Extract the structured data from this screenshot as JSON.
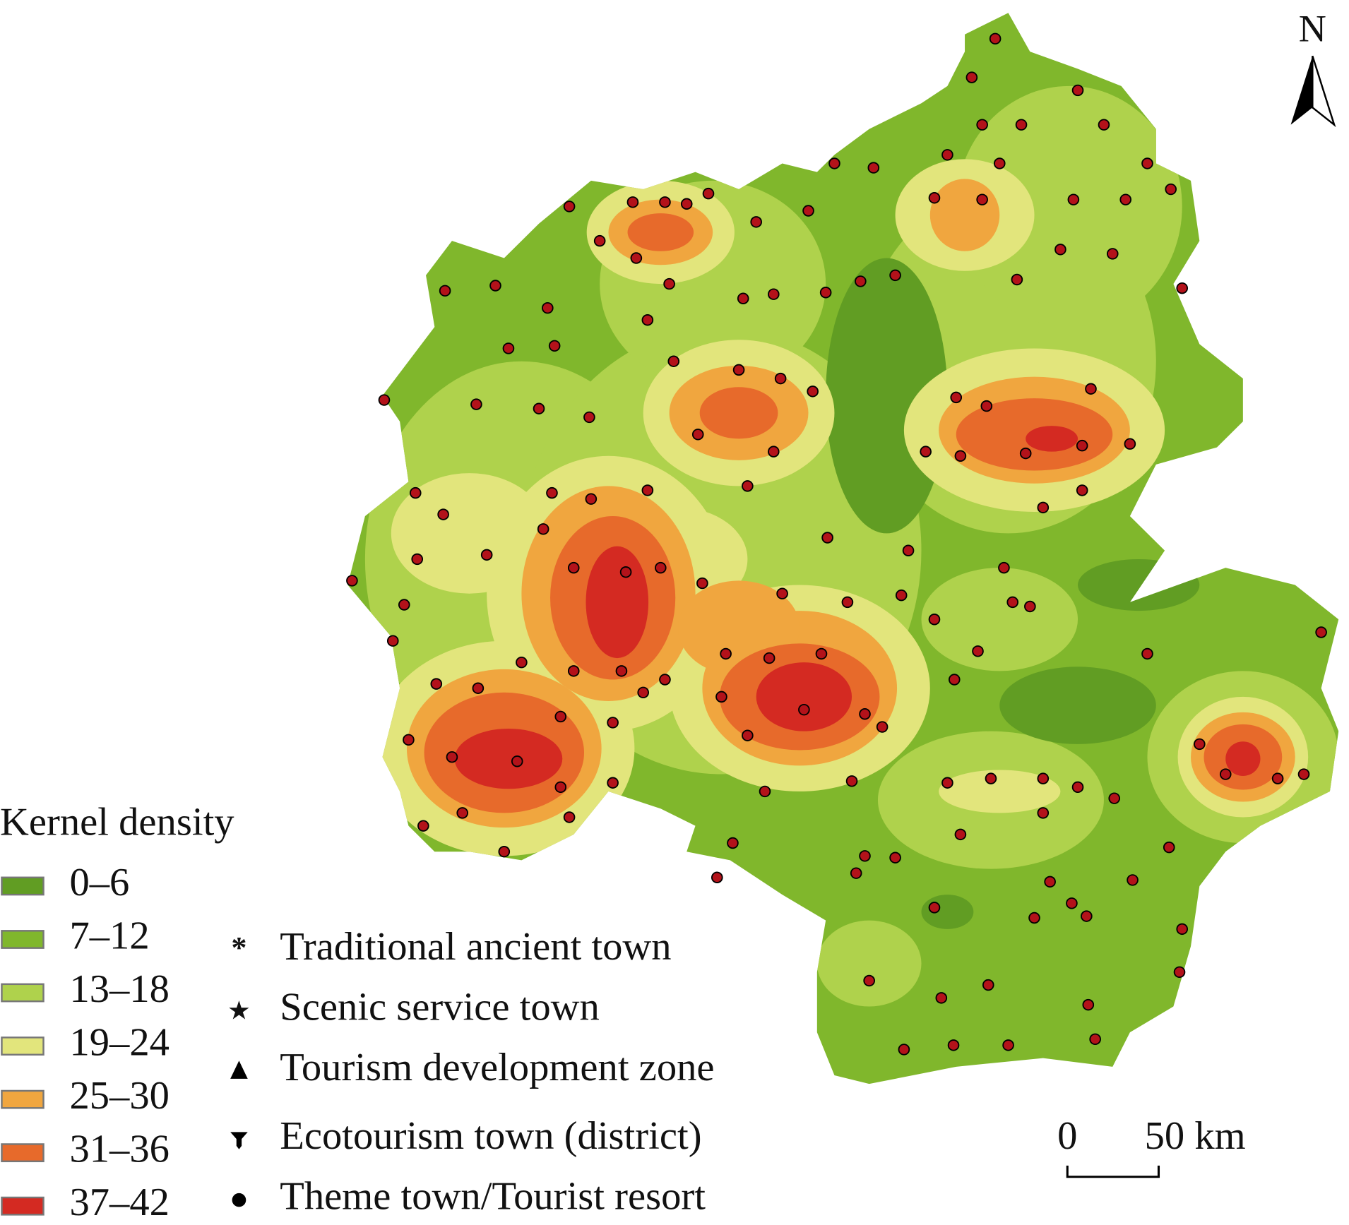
{
  "map": {
    "north_label": "N",
    "scale": {
      "start": "0",
      "end": "50 km"
    }
  },
  "legend": {
    "title": "Kernel density",
    "classes": [
      {
        "label": "0–6",
        "color": "#619d23"
      },
      {
        "label": "7–12",
        "color": "#80b72c"
      },
      {
        "label": "13–18",
        "color": "#afd24c"
      },
      {
        "label": "19–24",
        "color": "#e2e57c"
      },
      {
        "label": "25–30",
        "color": "#f0a63f"
      },
      {
        "label": "31–36",
        "color": "#e76a2b"
      },
      {
        "label": "37–42",
        "color": "#d42a22"
      }
    ],
    "markers": [
      "Traditional ancient town",
      "Scenic service town",
      "Tourism development zone",
      "Ecotourism town (district)",
      "Theme town/Tourist resort"
    ]
  }
}
